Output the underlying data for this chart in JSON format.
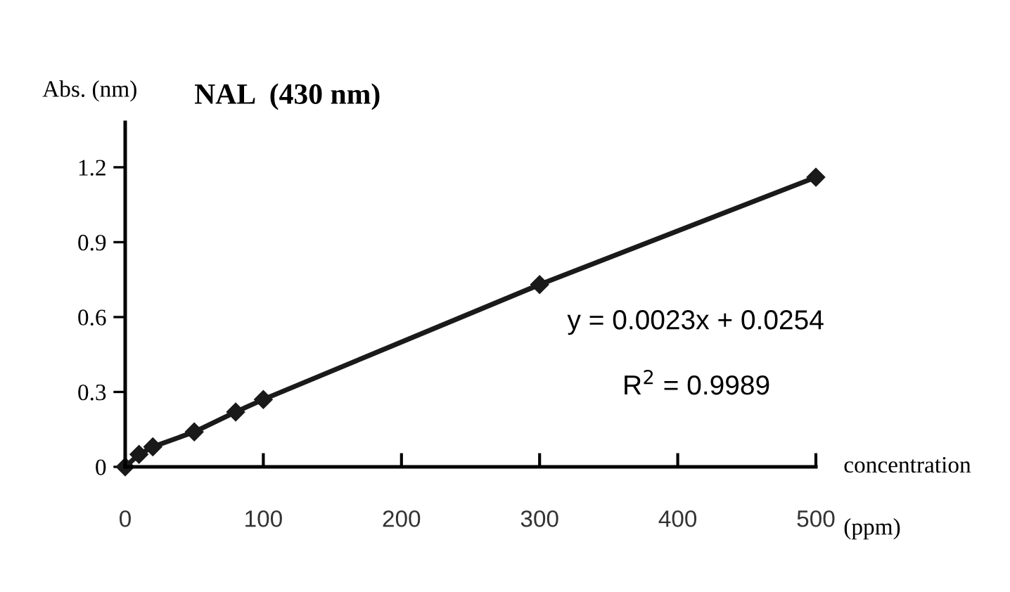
{
  "chart_data": {
    "type": "line",
    "title": "NAL  (430 nm)",
    "xlabel": "concentration",
    "x2label": "(ppm)",
    "ylabel": "Abs. (nm)",
    "x": [
      0,
      10,
      20,
      50,
      80,
      100,
      300,
      500
    ],
    "series": [
      {
        "color": "#1a1a1a",
        "values": [
          0,
          0.05,
          0.08,
          0.14,
          0.22,
          0.27,
          0.73,
          1.16
        ]
      }
    ],
    "xlim": [
      0,
      500
    ],
    "xticks": [
      0,
      100,
      200,
      300,
      400,
      500
    ],
    "ylim": [
      0,
      1.38
    ],
    "yticks": [
      0,
      0.3,
      0.6,
      0.9,
      1.2
    ],
    "marker": "diamond",
    "line_style": "solid",
    "grid": false,
    "legend": false,
    "annotations": [
      "y = 0.0023x + 0.0254",
      "R$^{2}$ = 0.9989"
    ]
  }
}
